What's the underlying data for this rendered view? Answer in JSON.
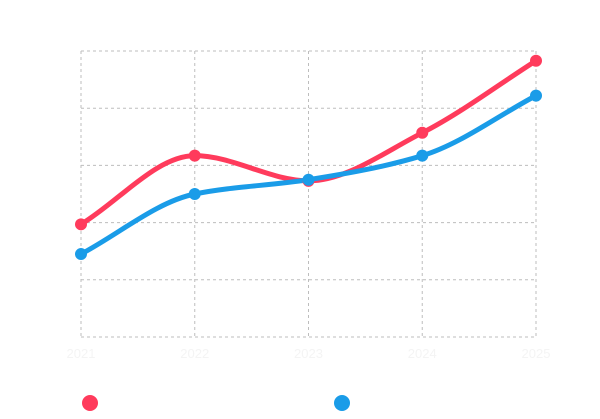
{
  "chart_data": {
    "type": "line",
    "x": [
      "2021",
      "2022",
      "2023",
      "2024",
      "2025"
    ],
    "ylim": [
      0,
      5
    ],
    "y_ticks": [
      0,
      1,
      2,
      3,
      4,
      5
    ],
    "grid": true,
    "curve": "smooth",
    "legend_position": "bottom",
    "series": [
      {
        "name": "",
        "color": "#ff3b5c",
        "values": [
          1.97,
          3.17,
          2.73,
          3.57,
          4.83
        ]
      },
      {
        "name": "",
        "color": "#1a9ce8",
        "values": [
          1.45,
          2.5,
          2.75,
          3.17,
          4.22
        ]
      }
    ]
  }
}
